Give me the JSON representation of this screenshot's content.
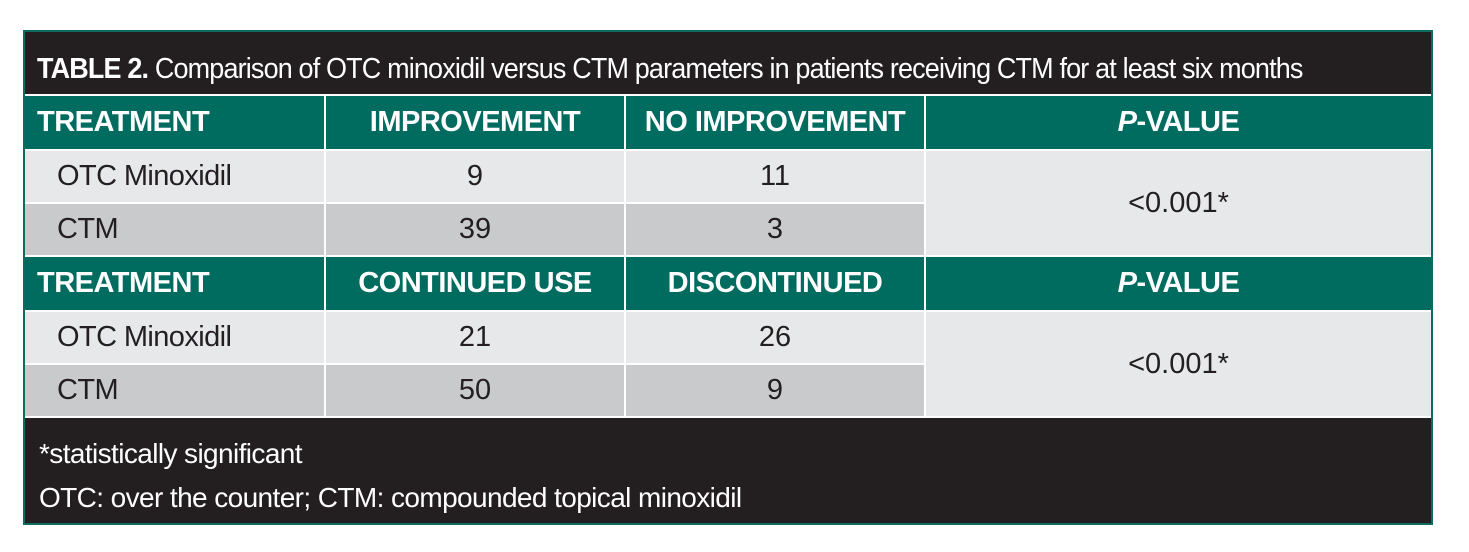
{
  "table": {
    "label": "TABLE 2.",
    "title": "Comparison of OTC minoxidil versus CTM parameters in patients receiving CTM for at least six months",
    "section1": {
      "headers": [
        "TREATMENT",
        "IMPROVEMENT",
        "NO IMPROVEMENT"
      ],
      "pvalue_header_italic": "P",
      "pvalue_header_rest": "-VALUE",
      "rows": [
        {
          "treatment": "OTC Minoxidil",
          "col1": "9",
          "col2": "11"
        },
        {
          "treatment": "CTM",
          "col1": "39",
          "col2": "3"
        }
      ],
      "pvalue": "<0.001*"
    },
    "section2": {
      "headers": [
        "TREATMENT",
        "CONTINUED USE",
        "DISCONTINUED"
      ],
      "pvalue_header_italic": "P",
      "pvalue_header_rest": "-VALUE",
      "rows": [
        {
          "treatment": "OTC Minoxidil",
          "col1": "21",
          "col2": "26"
        },
        {
          "treatment": "CTM",
          "col1": "50",
          "col2": "9"
        }
      ],
      "pvalue": "<0.001*"
    },
    "footnotes": [
      "*statistically significant",
      "OTC: over the counter; CTM: compounded topical minoxidil"
    ],
    "colors": {
      "frame": "#231f20",
      "header_teal": "#006b5f",
      "row_light": "#e7e8e9",
      "row_dark": "#c9cacc"
    }
  }
}
